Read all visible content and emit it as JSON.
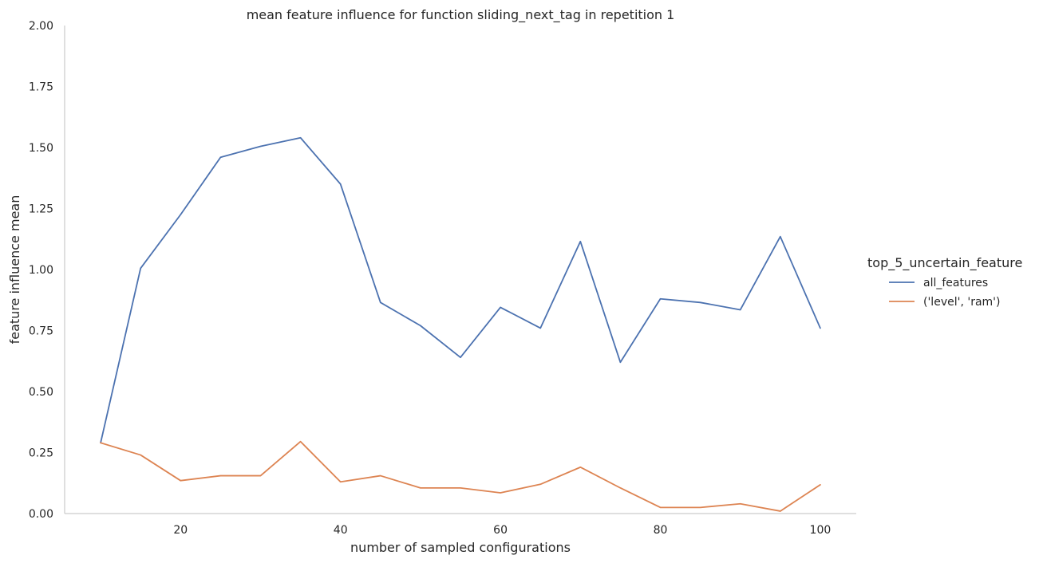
{
  "chart_data": {
    "type": "line",
    "title": "mean feature influence for function sliding_next_tag in repetition 1",
    "xlabel": "number of sampled configurations",
    "ylabel": "feature influence mean",
    "xlim": [
      5.5,
      104.5
    ],
    "ylim": [
      0,
      2
    ],
    "xticks": [
      20,
      40,
      60,
      80,
      100
    ],
    "yticks": [
      0.0,
      0.25,
      0.5,
      0.75,
      1.0,
      1.25,
      1.5,
      1.75,
      2.0
    ],
    "ytick_labels": [
      "0.00",
      "0.25",
      "0.50",
      "0.75",
      "1.00",
      "1.25",
      "1.50",
      "1.75",
      "2.00"
    ],
    "grid": false,
    "legend": {
      "title": "top_5_uncertain_feature",
      "placement": "right"
    },
    "x": [
      10,
      15,
      20,
      25,
      30,
      35,
      40,
      45,
      50,
      55,
      60,
      65,
      70,
      75,
      80,
      85,
      90,
      95,
      100
    ],
    "series": [
      {
        "name": "all_features",
        "color": "#4c72b0",
        "values": [
          0.29,
          1.005,
          1.225,
          1.46,
          1.505,
          1.54,
          1.35,
          0.865,
          0.77,
          0.64,
          0.845,
          0.76,
          1.115,
          0.62,
          0.88,
          0.865,
          0.835,
          1.135,
          0.76
        ]
      },
      {
        "name": "('level', 'ram')",
        "color": "#dd8452",
        "values": [
          0.29,
          0.24,
          0.135,
          0.155,
          0.155,
          0.295,
          0.13,
          0.155,
          0.105,
          0.105,
          0.085,
          0.12,
          0.19,
          0.105,
          0.025,
          0.025,
          0.04,
          0.01,
          0.118
        ]
      }
    ]
  }
}
